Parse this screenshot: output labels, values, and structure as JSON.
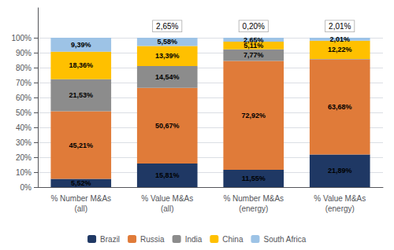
{
  "chart_data": {
    "type": "bar",
    "stacked": true,
    "data_labels": true,
    "grid": true,
    "legend": "bottom",
    "categories": [
      "% Number M&As\n(all)",
      "% Value M&As\n(all)",
      "% Number M&As\n(energy)",
      "% Value M&As\n(energy)"
    ],
    "series": [
      {
        "name": "Brazil",
        "color": "#1f3864",
        "values": [
          5.52,
          15.81,
          11.55,
          21.89
        ],
        "value_labels": [
          "5,52%",
          "15,81%",
          "11,55%",
          "21,89%"
        ]
      },
      {
        "name": "Russia",
        "color": "#e07b39",
        "values": [
          45.21,
          50.67,
          72.92,
          63.68
        ],
        "value_labels": [
          "45,21%",
          "50,67%",
          "72,92%",
          "63,68%"
        ]
      },
      {
        "name": "India",
        "color": "#8c8c8c",
        "values": [
          21.53,
          14.54,
          7.77,
          0.2
        ],
        "value_labels": [
          "21,53%",
          "14,54%",
          "7,77%",
          null
        ]
      },
      {
        "name": "China",
        "color": "#ffc000",
        "values": [
          18.36,
          13.39,
          5.11,
          12.22
        ],
        "value_labels": [
          "18,36%",
          "13,39%",
          "5,11%",
          "12,22%"
        ]
      },
      {
        "name": "South Africa",
        "color": "#9dc3e6",
        "values": [
          9.39,
          5.58,
          2.65,
          2.01
        ],
        "value_labels": [
          "9,39%",
          "5,58%",
          "2,65%",
          "2,01%"
        ]
      }
    ],
    "ylim": [
      0,
      120
    ],
    "yticks": [
      {
        "value": 0,
        "label": "0%"
      },
      {
        "value": 10,
        "label": "10%"
      },
      {
        "value": 20,
        "label": "20%"
      },
      {
        "value": 30,
        "label": "30%"
      },
      {
        "value": 40,
        "label": "40%"
      },
      {
        "value": 50,
        "label": "50%"
      },
      {
        "value": 60,
        "label": "60%"
      },
      {
        "value": 70,
        "label": "70%"
      },
      {
        "value": 80,
        "label": "80%"
      },
      {
        "value": 90,
        "label": "90%"
      },
      {
        "value": 100,
        "label": "100%"
      }
    ],
    "annotations": [
      {
        "text": "2,65%",
        "category": "% Value M&As\n(all)",
        "y": 102
      },
      {
        "text": "0,20%",
        "category": "% Number M&As\n(energy)",
        "y": 102
      },
      {
        "text": "2,01%",
        "category": "% Value M&As\n(energy)",
        "y": 102
      }
    ]
  }
}
